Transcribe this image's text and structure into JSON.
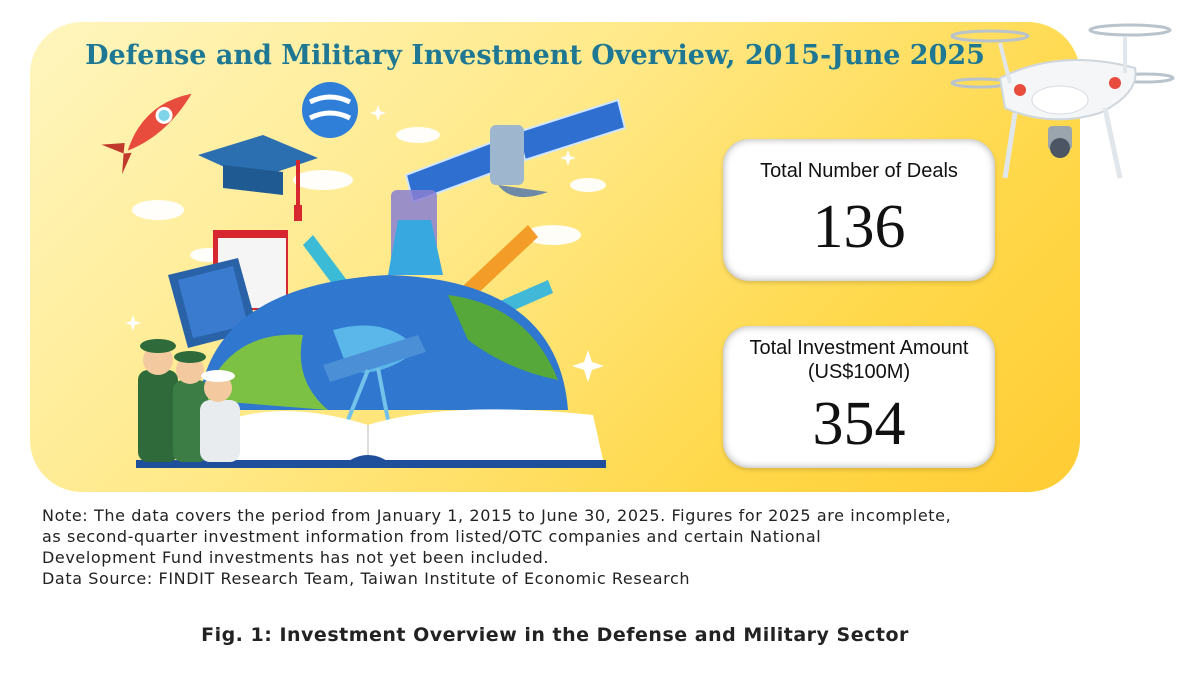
{
  "header": {
    "title": "Defense and Military Investment Overview, 2015-June 2025"
  },
  "stats": {
    "deals_label": "Total Number of Deals",
    "deals_value": "136",
    "amount_label": "Total Investment Amount",
    "amount_unit": "(US$100M)",
    "amount_value": "354"
  },
  "note": {
    "line1": "Note: The data covers the period from January 1, 2015 to June 30, 2025. Figures for 2025 are incomplete,",
    "line2": "as second-quarter investment information from listed/OTC companies and certain National",
    "line3": "Development Fund investments has not yet been included.",
    "source": "Data Source: FINDIT Research Team, Taiwan Institute of Economic Research"
  },
  "caption": "Fig. 1: Investment Overview in the Defense and Military Sector",
  "colors": {
    "title": "#1f7893",
    "panel_light": "#fff6bf",
    "panel_dark": "#ffcc33"
  }
}
